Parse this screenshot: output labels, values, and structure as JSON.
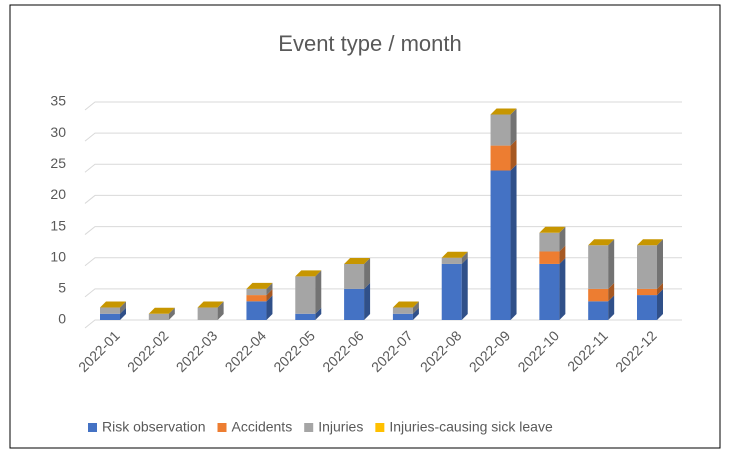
{
  "chart_data": {
    "type": "bar3d_stacked",
    "title": "Event type / month",
    "categories": [
      "2022-01",
      "2022-02",
      "2022-03",
      "2022-04",
      "2022-05",
      "2022-06",
      "2022-07",
      "2022-08",
      "2022-09",
      "2022-10",
      "2022-11",
      "2022-12"
    ],
    "series": [
      {
        "name": "Risk observation",
        "color": "#4472c4",
        "values": [
          1,
          0,
          0,
          3,
          1,
          5,
          1,
          9,
          24,
          9,
          3,
          4
        ]
      },
      {
        "name": "Accidents",
        "color": "#ed7d31",
        "values": [
          0,
          0,
          0,
          1,
          0,
          0,
          0,
          0,
          4,
          2,
          2,
          1
        ]
      },
      {
        "name": "Injuries",
        "color": "#a5a5a5",
        "values": [
          1,
          1,
          2,
          1,
          6,
          4,
          1,
          1,
          5,
          3,
          7,
          7
        ]
      },
      {
        "name": "Injuries-causing sick leave",
        "color": "#ffc000",
        "values": [
          0,
          0,
          0,
          0,
          0,
          0,
          0,
          0,
          0,
          0,
          0,
          0
        ]
      }
    ],
    "ylim": [
      0,
      35
    ],
    "yticks": [
      0,
      5,
      10,
      15,
      20,
      25,
      30,
      35
    ],
    "grid": true,
    "legend": "bottom"
  }
}
